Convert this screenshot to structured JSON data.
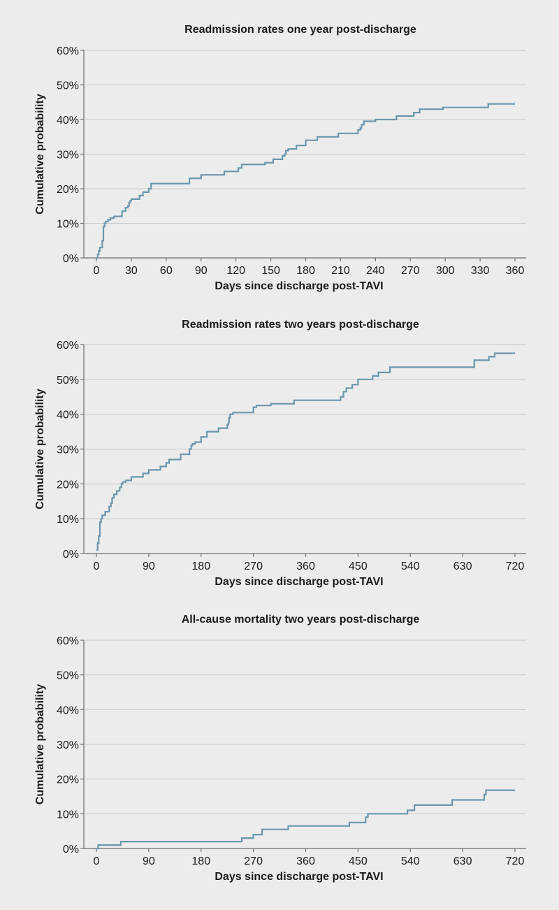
{
  "colors": {
    "series": "#6a97ad",
    "background": "#ececec",
    "grid": "#c8c8c8"
  },
  "chart_data": [
    {
      "type": "line",
      "title": "Readmission rates one year post-discharge",
      "xlabel": "Days since discharge post-TAVI",
      "ylabel": "Cumulative probability",
      "xlim": [
        0,
        360
      ],
      "ylim": [
        0,
        60
      ],
      "xticks": [
        "0",
        "30",
        "60",
        "90",
        "120",
        "150",
        "180",
        "210",
        "240",
        "270",
        "300",
        "330",
        "360"
      ],
      "yticks": [
        "0%",
        "10%",
        "20%",
        "30%",
        "40%",
        "50%",
        "60%"
      ],
      "grid": true,
      "step": true,
      "series": [
        {
          "name": "Readmission",
          "x": [
            0,
            1,
            2,
            3,
            5,
            6,
            7,
            8,
            10,
            12,
            15,
            22,
            25,
            27,
            28,
            29,
            30,
            37,
            40,
            45,
            47,
            80,
            90,
            110,
            122,
            125,
            145,
            152,
            160,
            162,
            163,
            165,
            172,
            180,
            190,
            208,
            225,
            227,
            228,
            230,
            240,
            258,
            273,
            278,
            298,
            337,
            360
          ],
          "y": [
            0,
            1,
            2,
            3,
            5,
            9,
            10,
            10.5,
            11,
            11.5,
            12,
            13.5,
            14.5,
            15,
            16,
            16.5,
            17,
            18,
            19,
            20,
            21.5,
            23,
            24,
            25,
            26,
            27,
            27.5,
            28.5,
            29.5,
            30,
            31,
            31.5,
            32.5,
            34,
            35,
            36,
            37,
            37.5,
            38.5,
            39.5,
            40,
            41,
            42,
            43,
            43.5,
            44.5,
            44.5
          ]
        }
      ]
    },
    {
      "type": "line",
      "title": "Readmission rates two years post-discharge",
      "xlabel": "Days since discharge post-TAVI",
      "ylabel": "Cumulative probability",
      "xlim": [
        0,
        720
      ],
      "ylim": [
        0,
        60
      ],
      "xticks": [
        "0",
        "90",
        "180",
        "270",
        "360",
        "450",
        "540",
        "630",
        "720"
      ],
      "yticks": [
        "0%",
        "10%",
        "20%",
        "30%",
        "40%",
        "50%",
        "60%"
      ],
      "grid": true,
      "step": true,
      "series": [
        {
          "name": "Readmission",
          "x": [
            0,
            2,
            4,
            6,
            8,
            10,
            15,
            22,
            25,
            27,
            30,
            35,
            40,
            43,
            45,
            50,
            60,
            80,
            90,
            110,
            120,
            125,
            145,
            160,
            163,
            165,
            170,
            180,
            190,
            210,
            225,
            227,
            228,
            230,
            235,
            270,
            275,
            300,
            340,
            420,
            425,
            430,
            440,
            450,
            475,
            485,
            505,
            650,
            675,
            685,
            720
          ],
          "y": [
            1,
            3,
            5,
            9,
            10,
            11,
            12,
            13.5,
            14.5,
            16,
            17,
            18,
            19,
            20,
            20.5,
            21,
            22,
            23,
            24,
            25,
            26,
            27,
            28.5,
            30,
            31,
            31.5,
            32,
            33.5,
            35,
            36,
            37,
            37.5,
            39,
            40,
            40.5,
            42,
            42.5,
            43,
            44,
            45,
            46.5,
            47.5,
            48.5,
            50,
            51,
            52,
            53.5,
            55.5,
            56.5,
            57.5,
            57.5
          ]
        }
      ]
    },
    {
      "type": "line",
      "title": "All-cause mortality two years post-discharge",
      "xlabel": "Days since discharge post-TAVI",
      "ylabel": "Cumulative probability",
      "xlim": [
        0,
        720
      ],
      "ylim": [
        0,
        60
      ],
      "xticks": [
        "0",
        "90",
        "180",
        "270",
        "360",
        "450",
        "540",
        "630",
        "720"
      ],
      "yticks": [
        "0%",
        "10%",
        "20%",
        "30%",
        "40%",
        "50%",
        "60%"
      ],
      "grid": true,
      "step": true,
      "series": [
        {
          "name": "Mortality",
          "x": [
            0,
            3,
            42,
            240,
            250,
            270,
            285,
            330,
            435,
            463,
            467,
            535,
            547,
            612,
            667,
            670,
            720
          ],
          "y": [
            0,
            1,
            2,
            2,
            3,
            4,
            5.5,
            6.5,
            7.5,
            9,
            10,
            11,
            12.5,
            14,
            15.5,
            16.8,
            16.8
          ]
        }
      ]
    }
  ]
}
